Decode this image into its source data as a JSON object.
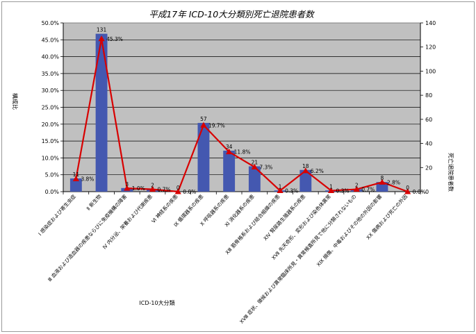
{
  "chart_data": {
    "type": "bar+line",
    "title": "平成17年 ICD-10大分類別死亡退院患者数",
    "xlabel": "ICD-10大分類",
    "ylabel_left": "構成比",
    "ylabel_right": "死亡退院患者数",
    "left_axis": {
      "min": 0,
      "max": 50,
      "step": 5,
      "format": "percent1"
    },
    "right_axis": {
      "min": 0,
      "max": 140,
      "step": 20
    },
    "grid": true,
    "plot_background": "#c0c0c0",
    "bar_color": "#4458b0",
    "line_color": "#d80000",
    "categories": [
      "Ⅰ 感染症および寄生虫症",
      "Ⅱ 新生物",
      "Ⅲ 血液および造血器の疾患ならびに免疫機構の障害",
      "Ⅳ 内分泌、栄養および代謝疾患",
      "Ⅵ 神経系の疾患",
      "Ⅸ 循環器系の疾患",
      "Ⅹ 呼吸器系の疾患",
      "Ⅺ 消化器系の疾患",
      "ⅩⅢ 筋骨格系および結合組織の疾患",
      "ⅩⅣ 腎尿路生殖器系の疾患",
      "ⅩⅦ 先天奇形、変形および染色体異常",
      "ⅩⅧ 症状、徴候および異常臨床所見・異常検査所見で他に分類されないもの",
      "ⅩⅨ 損傷、中毒およびその他の外因の影響",
      "ⅩⅩ 傷病および死亡の外因"
    ],
    "counts": [
      11,
      131,
      3,
      2,
      0,
      57,
      34,
      21,
      1,
      18,
      1,
      2,
      8,
      0
    ],
    "count_labels": [
      "11",
      "131",
      "3",
      "2",
      "0",
      "57",
      "34",
      "21",
      "1",
      "18",
      "1",
      "2",
      "8",
      "0"
    ],
    "ratios": [
      3.8,
      45.3,
      1.0,
      0.7,
      0.0,
      19.7,
      11.8,
      7.3,
      0.3,
      6.2,
      0.3,
      0.7,
      2.8,
      0.0
    ],
    "ratio_labels": [
      "3.8%",
      "45.3%",
      "1.0%",
      "0.7%",
      "0.0%",
      "19.7%",
      "11.8%",
      "7.3%",
      "0.3%",
      "6.2%",
      "0.3%",
      "0.7%",
      "2.8%",
      "0.0%"
    ]
  }
}
